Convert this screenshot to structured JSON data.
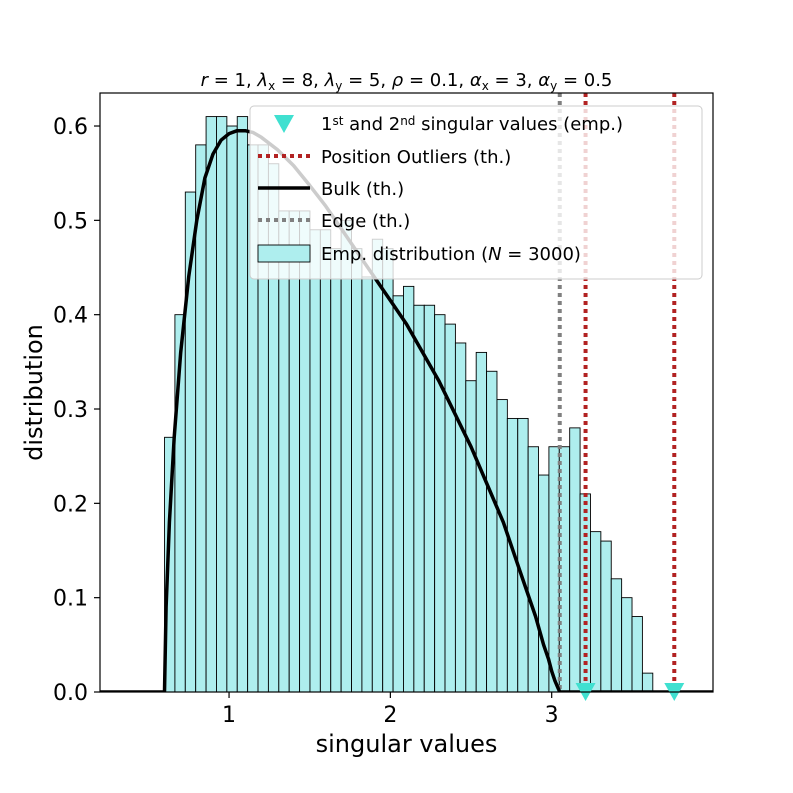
{
  "chart_data": {
    "type": "histogram",
    "title": {
      "parts": [
        {
          "t": "r",
          "i": true
        },
        {
          "t": " = 1, "
        },
        {
          "t": "λ",
          "i": true
        },
        {
          "t": "x",
          "sub": true
        },
        {
          "t": " = 8, "
        },
        {
          "t": "λ",
          "i": true
        },
        {
          "t": "y",
          "sub": true
        },
        {
          "t": " = 5, "
        },
        {
          "t": "ρ",
          "i": true
        },
        {
          "t": " = 0.1, "
        },
        {
          "t": "α",
          "i": true
        },
        {
          "t": "x",
          "sub": true
        },
        {
          "t": " = 3, "
        },
        {
          "t": "α",
          "i": true
        },
        {
          "t": "y",
          "sub": true
        },
        {
          "t": " = 0.5"
        }
      ]
    },
    "xlabel": "singular values",
    "ylabel": "distribution",
    "xlim": [
      0.2,
      4.0
    ],
    "ylim": [
      0.0,
      0.635
    ],
    "xticks": [
      1,
      2,
      3
    ],
    "yticks": [
      0.0,
      0.1,
      0.2,
      0.3,
      0.4,
      0.5,
      0.6
    ],
    "legend": {
      "position": "top-right",
      "entries": [
        {
          "key": "emp",
          "parts": [
            {
              "t": "1"
            },
            {
              "t": "st",
              "sup": true
            },
            {
              "t": " and 2"
            },
            {
              "t": "nd",
              "sup": true
            },
            {
              "t": " singular values (emp.)"
            }
          ]
        },
        {
          "key": "outliers",
          "parts": [
            {
              "t": "Position Outliers (th.)"
            }
          ]
        },
        {
          "key": "bulk",
          "parts": [
            {
              "t": "Bulk (th.)"
            }
          ]
        },
        {
          "key": "edge",
          "parts": [
            {
              "t": "Edge (th.)"
            }
          ]
        },
        {
          "key": "hist",
          "parts": [
            {
              "t": "Emp. distribution ("
            },
            {
              "t": "N",
              "i": true
            },
            {
              "t": " = 3000)"
            }
          ]
        }
      ]
    },
    "histogram": {
      "bin_start": 0.6,
      "bin_width": 0.0644,
      "values": [
        0.27,
        0.4,
        0.53,
        0.58,
        0.61,
        0.61,
        0.6,
        0.61,
        0.58,
        0.58,
        0.56,
        0.51,
        0.51,
        0.51,
        0.49,
        0.49,
        0.47,
        0.5,
        0.47,
        0.44,
        0.48,
        0.47,
        0.42,
        0.43,
        0.41,
        0.41,
        0.4,
        0.39,
        0.37,
        0.33,
        0.36,
        0.34,
        0.31,
        0.29,
        0.29,
        0.26,
        0.23,
        0.26,
        0.26,
        0.28,
        0.21,
        0.17,
        0.16,
        0.12,
        0.1,
        0.08,
        0.02
      ],
      "fill": "#aeeeee",
      "edge": "#000000"
    },
    "bulk": {
      "name": "Bulk (th.)",
      "color": "#000000",
      "x": [
        0.2,
        0.6,
        0.61,
        0.63,
        0.66,
        0.7,
        0.75,
        0.8,
        0.85,
        0.9,
        0.95,
        1.0,
        1.05,
        1.1,
        1.15,
        1.2,
        1.3,
        1.4,
        1.5,
        1.6,
        1.7,
        1.8,
        1.9,
        2.0,
        2.1,
        2.2,
        2.3,
        2.4,
        2.5,
        2.6,
        2.7,
        2.8,
        2.85,
        2.9,
        2.95,
        2.98,
        3.0,
        3.02,
        3.04,
        3.05,
        4.0
      ],
      "y": [
        0.0,
        0.0,
        0.09,
        0.18,
        0.27,
        0.36,
        0.44,
        0.5,
        0.545,
        0.57,
        0.585,
        0.592,
        0.595,
        0.595,
        0.593,
        0.588,
        0.575,
        0.558,
        0.537,
        0.515,
        0.49,
        0.465,
        0.44,
        0.415,
        0.39,
        0.36,
        0.33,
        0.295,
        0.26,
        0.22,
        0.18,
        0.13,
        0.105,
        0.08,
        0.05,
        0.035,
        0.022,
        0.012,
        0.004,
        0.0,
        0.0
      ]
    },
    "edge": {
      "name": "Edge (th.)",
      "x": 3.05,
      "color": "#808080"
    },
    "outliers": {
      "name": "Position Outliers (th.)",
      "x": [
        3.21,
        3.76
      ],
      "color": "#b22222"
    },
    "empirical_points": {
      "name": "1st and 2nd singular values (emp.)",
      "x": [
        3.21,
        3.76
      ],
      "y": [
        0.0,
        0.0
      ],
      "color": "#40e0d0"
    }
  }
}
